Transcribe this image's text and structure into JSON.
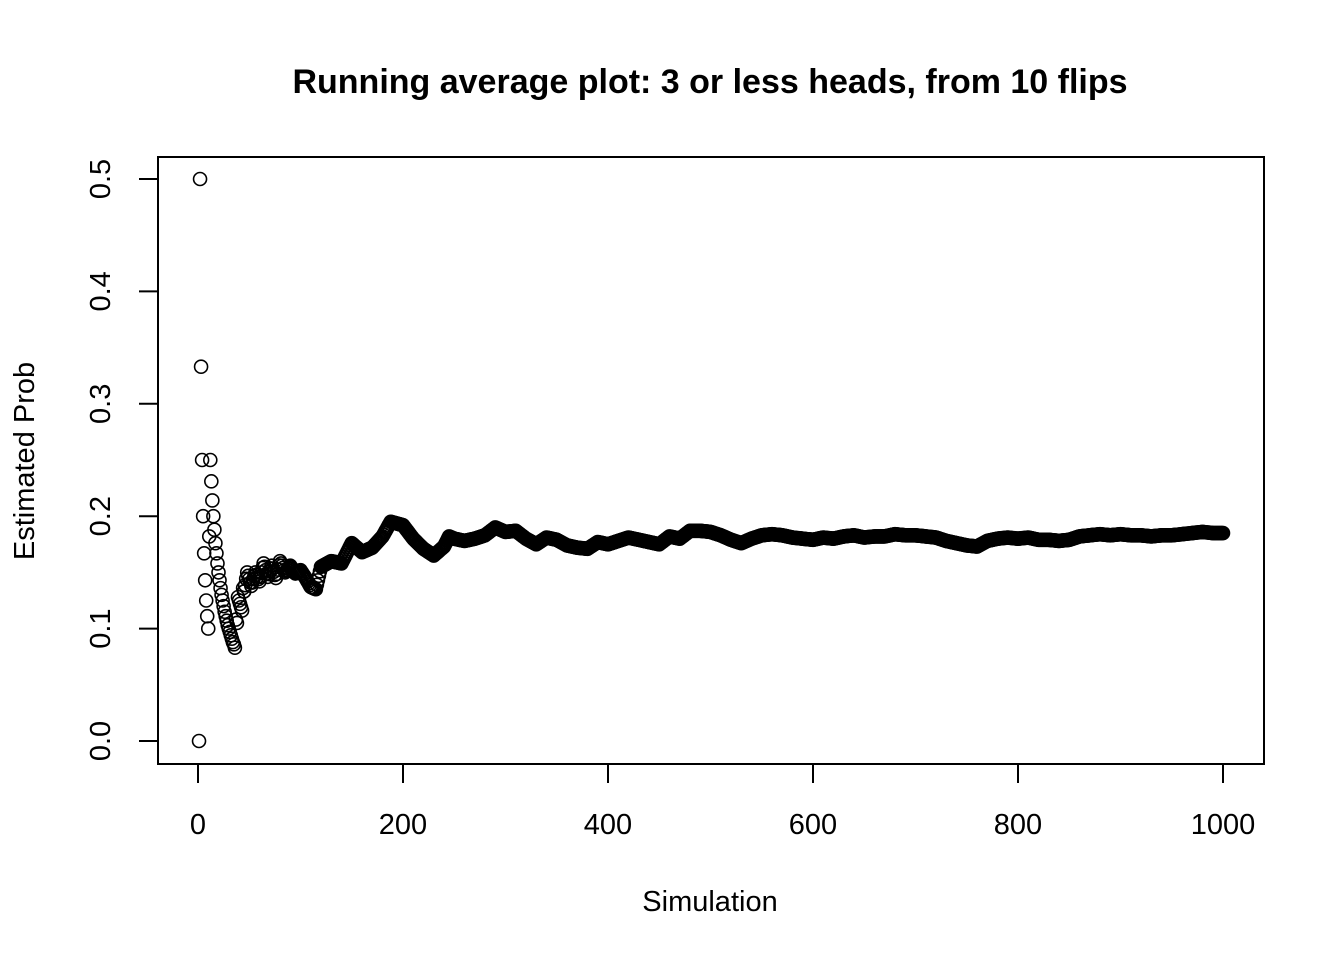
{
  "chart_data": {
    "type": "scatter",
    "title": "Running average plot: 3 or less heads, from 10 flips",
    "xlabel": "Simulation",
    "ylabel": "Estimated Prob",
    "xlim": [
      -20,
      1020
    ],
    "ylim": [
      -0.02,
      0.52
    ],
    "xticks": [
      0,
      200,
      400,
      600,
      800,
      1000
    ],
    "yticks": [
      0.0,
      0.1,
      0.2,
      0.3,
      0.4,
      0.5
    ],
    "xtick_labels": [
      "0",
      "200",
      "400",
      "600",
      "800",
      "1000"
    ],
    "ytick_labels": [
      "0.0",
      "0.1",
      "0.2",
      "0.3",
      "0.4",
      "0.5"
    ],
    "marker": "open-circle",
    "grid": false,
    "legend": "none",
    "colors": {
      "points": "#000000",
      "axes": "#000000",
      "background": "#ffffff"
    },
    "early_points": {
      "x": [
        1,
        2,
        3,
        4,
        5,
        6,
        7,
        8,
        9,
        10,
        11,
        12,
        13,
        14,
        15,
        16,
        17,
        18,
        19,
        20,
        21,
        22,
        23,
        24,
        25,
        26,
        27,
        28,
        29,
        30,
        31,
        32,
        33,
        34,
        35,
        36,
        37,
        38,
        39,
        40,
        41,
        42,
        43,
        44,
        45
      ],
      "y": [
        0.0,
        0.5,
        0.333,
        0.25,
        0.2,
        0.167,
        0.143,
        0.125,
        0.111,
        0.1,
        0.182,
        0.25,
        0.231,
        0.214,
        0.2,
        0.188,
        0.176,
        0.167,
        0.158,
        0.15,
        0.143,
        0.136,
        0.13,
        0.125,
        0.12,
        0.115,
        0.111,
        0.107,
        0.103,
        0.1,
        0.097,
        0.094,
        0.091,
        0.088,
        0.086,
        0.083,
        0.108,
        0.105,
        0.128,
        0.125,
        0.122,
        0.119,
        0.116,
        0.136,
        0.133
      ]
    },
    "trend_points": {
      "x": [
        45,
        48,
        52,
        56,
        60,
        64,
        68,
        72,
        76,
        80,
        85,
        90,
        95,
        100,
        105,
        110,
        115,
        120,
        130,
        140,
        150,
        160,
        170,
        180,
        188,
        192,
        200,
        210,
        220,
        230,
        240,
        245,
        250,
        260,
        270,
        280,
        290,
        300,
        310,
        320,
        330,
        340,
        350,
        360,
        370,
        380,
        390,
        400,
        410,
        420,
        430,
        440,
        450,
        460,
        470,
        480,
        490,
        500,
        510,
        520,
        530,
        540,
        550,
        560,
        570,
        580,
        590,
        600,
        610,
        620,
        630,
        640,
        650,
        660,
        670,
        680,
        690,
        700,
        710,
        720,
        730,
        740,
        750,
        760,
        770,
        780,
        790,
        800,
        810,
        820,
        830,
        840,
        850,
        860,
        870,
        880,
        890,
        900,
        910,
        920,
        930,
        940,
        950,
        960,
        970,
        980,
        990,
        1000
      ],
      "y": [
        0.133,
        0.15,
        0.138,
        0.15,
        0.142,
        0.158,
        0.146,
        0.156,
        0.145,
        0.16,
        0.15,
        0.156,
        0.149,
        0.152,
        0.145,
        0.137,
        0.135,
        0.155,
        0.16,
        0.158,
        0.176,
        0.168,
        0.172,
        0.182,
        0.195,
        0.194,
        0.192,
        0.18,
        0.171,
        0.165,
        0.173,
        0.182,
        0.18,
        0.178,
        0.18,
        0.183,
        0.19,
        0.186,
        0.187,
        0.18,
        0.175,
        0.181,
        0.179,
        0.174,
        0.172,
        0.171,
        0.177,
        0.175,
        0.178,
        0.181,
        0.179,
        0.177,
        0.175,
        0.182,
        0.18,
        0.187,
        0.187,
        0.186,
        0.183,
        0.179,
        0.176,
        0.18,
        0.183,
        0.184,
        0.183,
        0.181,
        0.18,
        0.179,
        0.181,
        0.18,
        0.182,
        0.183,
        0.181,
        0.182,
        0.182,
        0.184,
        0.183,
        0.183,
        0.182,
        0.181,
        0.178,
        0.176,
        0.174,
        0.173,
        0.178,
        0.18,
        0.181,
        0.18,
        0.181,
        0.179,
        0.179,
        0.178,
        0.179,
        0.182,
        0.183,
        0.184,
        0.183,
        0.184,
        0.183,
        0.183,
        0.182,
        0.183,
        0.183,
        0.184,
        0.185,
        0.186,
        0.185,
        0.185
      ]
    }
  }
}
